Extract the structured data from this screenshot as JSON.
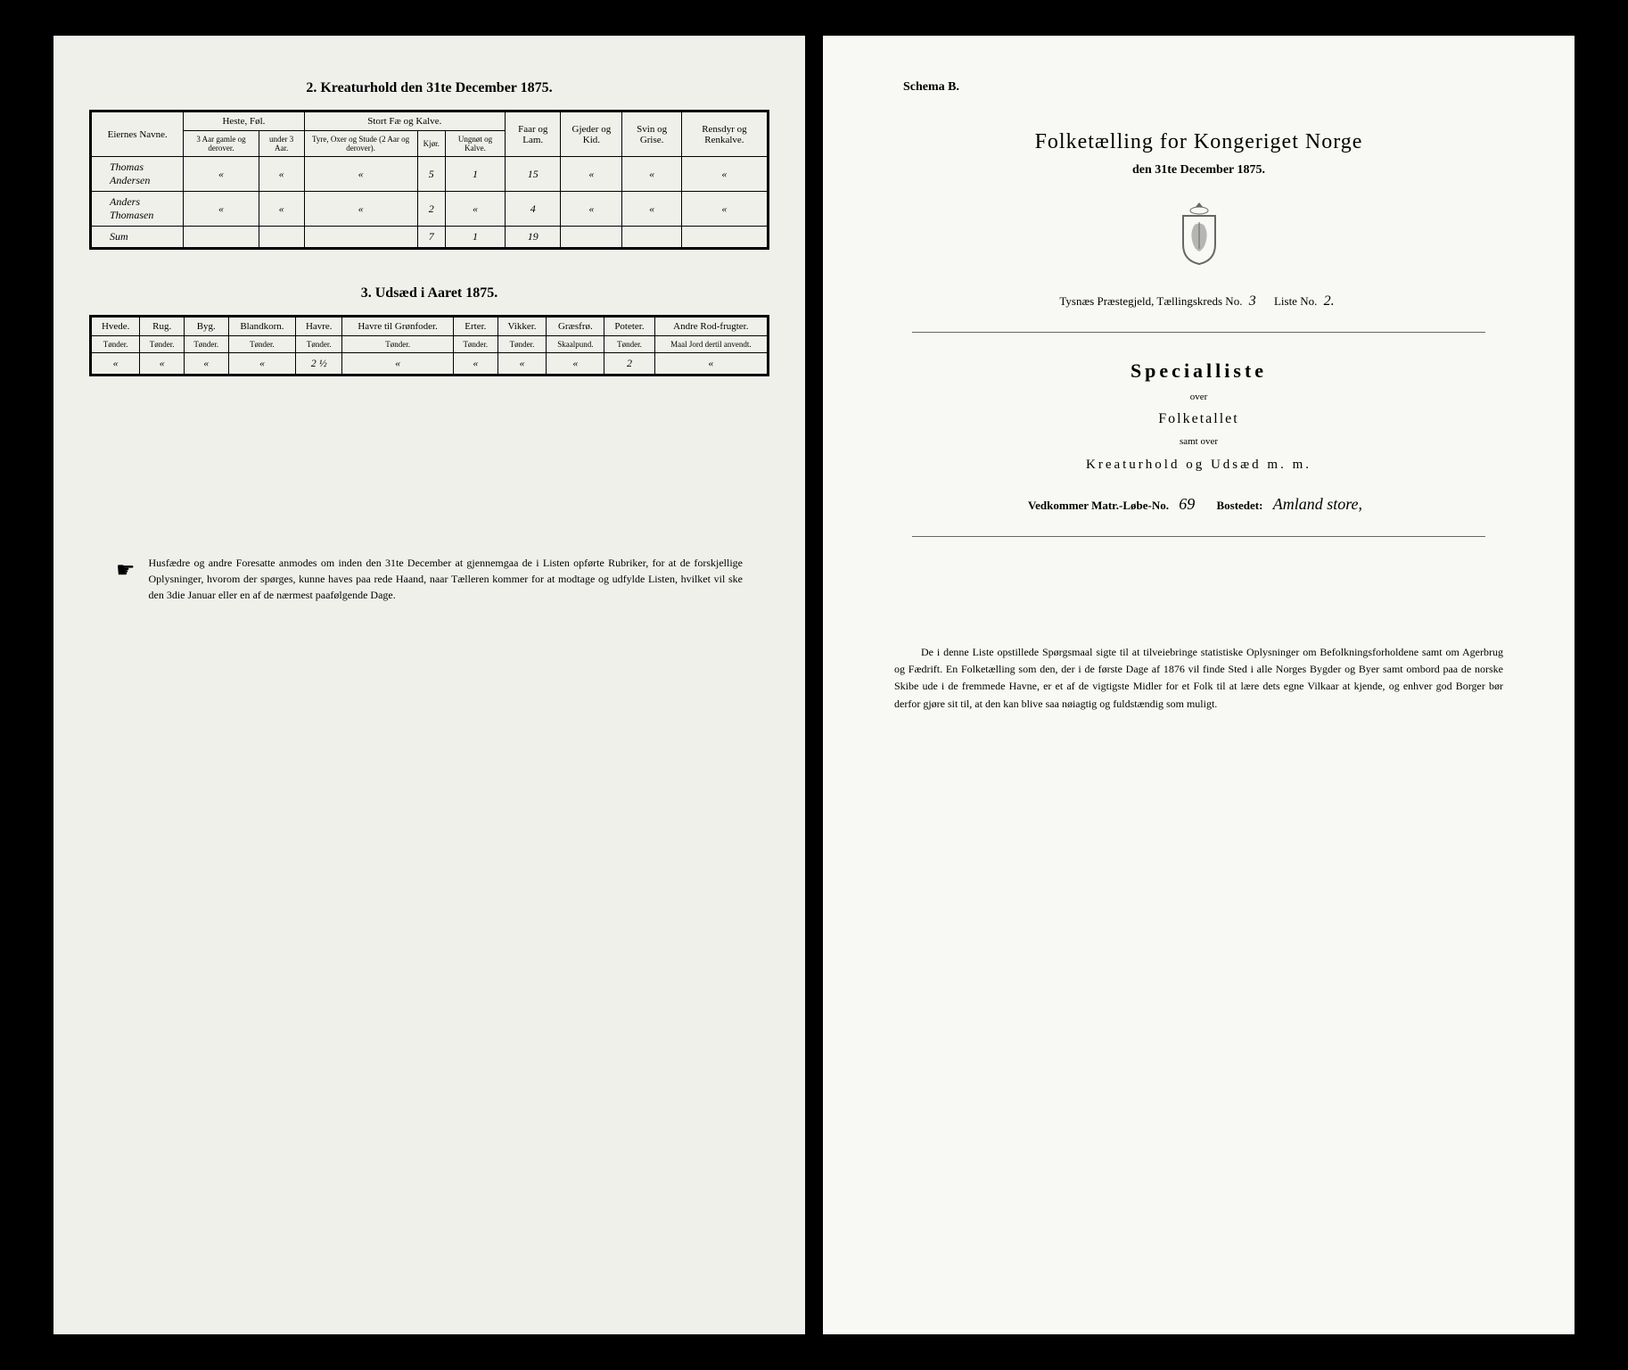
{
  "left": {
    "table2": {
      "title": "2.  Kreaturhold den 31te December 1875.",
      "col_name": "Eiernes Navne.",
      "group_heste": "Heste, Føl.",
      "group_stort": "Stort Fæ og Kalve.",
      "col_faar": "Faar og Lam.",
      "col_gjeder": "Gjeder og Kid.",
      "col_svin": "Svin og Grise.",
      "col_rensdyr": "Rensdyr og Renkalve.",
      "sub_3aar": "3 Aar gamle og derover.",
      "sub_under3": "under 3 Aar.",
      "sub_tyre": "Tyre, Oxer og Stude (2 Aar og derover).",
      "sub_kjor": "Kjør.",
      "sub_ungnot": "Ungnøt og Kalve.",
      "rows": [
        {
          "name": "Thomas Andersen",
          "c1": "«",
          "c2": "«",
          "c3": "«",
          "c4": "5",
          "c5": "1",
          "c6": "15",
          "c7": "«",
          "c8": "«",
          "c9": "«"
        },
        {
          "name": "Anders Thomasen",
          "c1": "«",
          "c2": "«",
          "c3": "«",
          "c4": "2",
          "c5": "«",
          "c6": "4",
          "c7": "«",
          "c8": "«",
          "c9": "«"
        },
        {
          "name": "Sum",
          "c1": "",
          "c2": "",
          "c3": "",
          "c4": "7",
          "c5": "1",
          "c6": "19",
          "c7": "",
          "c8": "",
          "c9": ""
        }
      ]
    },
    "table3": {
      "title": "3.  Udsæd i Aaret 1875.",
      "cols": [
        {
          "h": "Hvede.",
          "s": "Tønder."
        },
        {
          "h": "Rug.",
          "s": "Tønder."
        },
        {
          "h": "Byg.",
          "s": "Tønder."
        },
        {
          "h": "Blandkorn.",
          "s": "Tønder."
        },
        {
          "h": "Havre.",
          "s": "Tønder."
        },
        {
          "h": "Havre til Grønfoder.",
          "s": "Tønder."
        },
        {
          "h": "Erter.",
          "s": "Tønder."
        },
        {
          "h": "Vikker.",
          "s": "Tønder."
        },
        {
          "h": "Græsfrø.",
          "s": "Skaalpund."
        },
        {
          "h": "Poteter.",
          "s": "Tønder."
        },
        {
          "h": "Andre Rod-frugter.",
          "s": "Maal Jord dertil anvendt."
        }
      ],
      "row": [
        "«",
        "«",
        "«",
        "«",
        "2 ½",
        "«",
        "«",
        "«",
        "«",
        "2",
        "«"
      ]
    },
    "footnote": "Husfædre og andre Foresatte anmodes om inden den 31te December at gjennemgaa de i Listen opførte Rubriker, for at de forskjellige Oplysninger, hvorom der spørges, kunne haves paa rede Haand, naar Tælleren kommer for at modtage og udfylde Listen, hvilket vil ske den 3die Januar eller en af de nærmest paafølgende Dage."
  },
  "right": {
    "schema": "Schema B.",
    "title": "Folketælling for Kongeriget Norge",
    "date": "den 31te December 1875.",
    "region_pre": "Tysnæs  Præstegjeld,  Tællingskreds No.",
    "region_kreds": "3",
    "region_liste_pre": "Liste No.",
    "region_liste": "2.",
    "special": "Specialliste",
    "over1": "over",
    "folketallet": "Folketallet",
    "samt": "samt over",
    "kreatur": "Kreaturhold  og  Udsæd  m. m.",
    "vedkom_pre": "Vedkommer Matr.-Løbe-No.",
    "vedkom_no": "69",
    "bosted_pre": "Bostedet:",
    "bosted": "Amland store,",
    "bottom": "De i denne Liste opstillede Spørgsmaal sigte til at tilveiebringe statistiske Oplysninger om Befolkningsforholdene samt om Agerbrug og Fædrift.  En Folketælling som den, der i de første Dage af 1876 vil finde Sted i alle Norges Bygder og Byer samt ombord paa de norske Skibe ude i de fremmede Havne, er et af de vigtigste Midler for et Folk til at lære dets egne Vilkaar at kjende, og enhver god Borger bør derfor gjøre sit til, at den kan blive saa nøiagtig og fuldstændig som muligt."
  }
}
